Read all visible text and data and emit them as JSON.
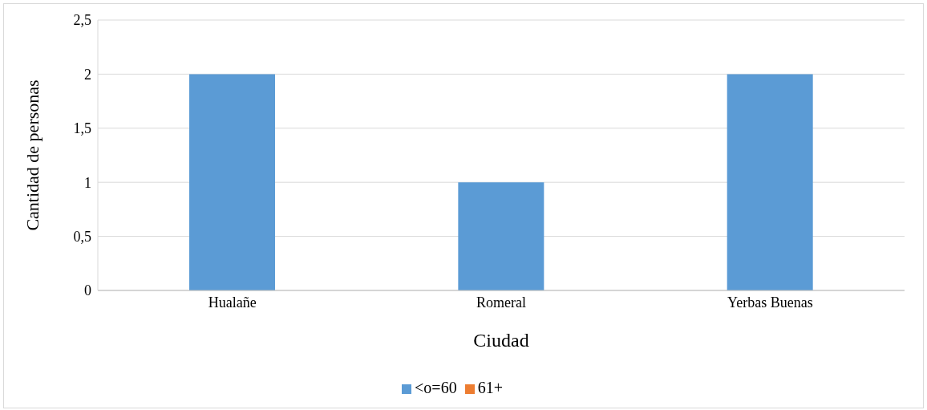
{
  "chart_data": {
    "type": "bar",
    "xlabel": "Ciudad",
    "ylabel": "Cantidad de personas",
    "categories": [
      "Hualañe",
      "Romeral",
      "Yerbas Buenas"
    ],
    "series": [
      {
        "name": "<o=60",
        "color": "#5b9bd5",
        "values": [
          2,
          1,
          2
        ]
      },
      {
        "name": "61+",
        "color": "#ed7d31",
        "values": [
          0,
          0,
          0
        ]
      }
    ],
    "stacked": true,
    "ylim": [
      0,
      2.5
    ],
    "yticks": [
      0,
      {
        "value": 0.5,
        "label": "0,5"
      },
      1,
      {
        "value": 1.5,
        "label": "1,5"
      },
      2,
      {
        "value": 2.5,
        "label": "2,5"
      }
    ],
    "grid": "y",
    "legend": "bottom"
  }
}
